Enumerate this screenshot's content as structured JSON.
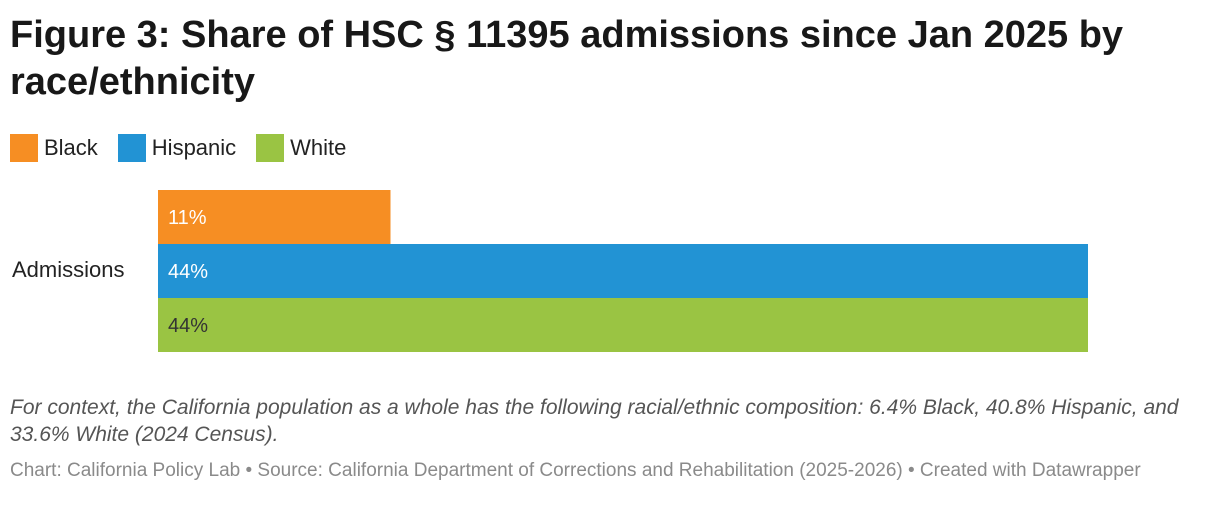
{
  "chart_data": {
    "type": "bar",
    "orientation": "horizontal",
    "stacking": "grouped",
    "title": "Figure 3: Share of HSC § 11395 admissions since Jan 2025 by race/ethnicity",
    "categories": [
      "Admissions"
    ],
    "series": [
      {
        "name": "Black",
        "values": [
          11
        ],
        "label": "11%",
        "color": "#f68e23",
        "label_color": "#ffffff"
      },
      {
        "name": "Hispanic",
        "values": [
          44
        ],
        "label": "44%",
        "color": "#2293d4",
        "label_color": "#ffffff"
      },
      {
        "name": "White",
        "values": [
          44
        ],
        "label": "44%",
        "color": "#9ac443",
        "label_color": "#333333"
      }
    ],
    "xlim": [
      0,
      44
    ],
    "legend_position": "top-left",
    "grid": false,
    "note": "For context, the California population as a whole has the following racial/ethnic composition: 6.4% Black, 40.8% Hispanic, and 33.6% White (2024 Census).",
    "source": "Chart: California Policy Lab • Source: California Department of Corrections and Rehabilitation (2025-2026) • Created with Datawrapper"
  }
}
